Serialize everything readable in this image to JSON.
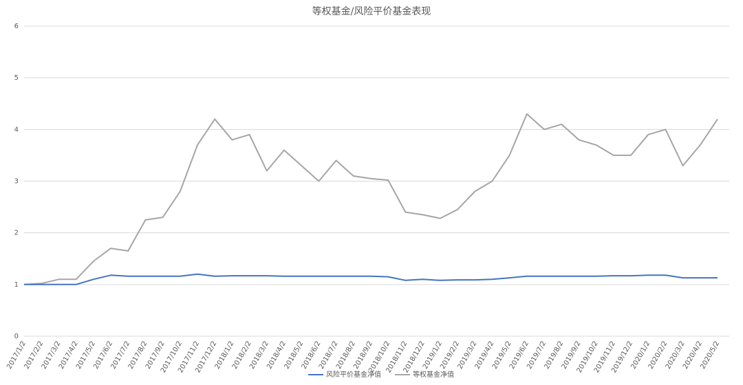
{
  "chart_data": {
    "type": "line",
    "title": "等权基金/风险平价基金表现",
    "categories": [
      "2017/1/2",
      "2017/2/2",
      "2017/3/2",
      "2017/4/2",
      "2017/5/2",
      "2017/6/2",
      "2017/7/2",
      "2017/8/2",
      "2017/9/2",
      "2017/10/2",
      "2017/11/2",
      "2017/12/2",
      "2018/1/2",
      "2018/2/2",
      "2018/3/2",
      "2018/4/2",
      "2018/5/2",
      "2018/6/2",
      "2018/7/2",
      "2018/8/2",
      "2018/9/2",
      "2018/10/2",
      "2018/11/2",
      "2018/12/2",
      "2019/1/2",
      "2019/2/2",
      "2019/3/2",
      "2019/4/2",
      "2019/5/2",
      "2019/6/2",
      "2019/7/2",
      "2019/8/2",
      "2019/9/2",
      "2019/10/2",
      "2019/11/2",
      "2019/12/2",
      "2020/1/2",
      "2020/2/2",
      "2020/3/2",
      "2020/4/2",
      "2020/5/2"
    ],
    "series": [
      {
        "name": "风险平价基金净值",
        "color": "#4472c4",
        "values": [
          1.0,
          1.0,
          1.0,
          1.0,
          1.1,
          1.18,
          1.16,
          1.16,
          1.16,
          1.16,
          1.2,
          1.16,
          1.17,
          1.17,
          1.17,
          1.16,
          1.16,
          1.16,
          1.16,
          1.16,
          1.16,
          1.15,
          1.08,
          1.1,
          1.08,
          1.09,
          1.09,
          1.1,
          1.13,
          1.16,
          1.16,
          1.16,
          1.16,
          1.16,
          1.17,
          1.17,
          1.18,
          1.18,
          1.13,
          1.13,
          1.13
        ]
      },
      {
        "name": "等权基金净值",
        "color": "#a5a5a5",
        "values": [
          1.0,
          1.02,
          1.1,
          1.1,
          1.45,
          1.7,
          1.65,
          2.25,
          2.3,
          2.8,
          3.7,
          4.2,
          3.8,
          3.9,
          3.2,
          3.6,
          3.3,
          3.0,
          3.4,
          3.1,
          3.05,
          3.02,
          2.4,
          2.35,
          2.28,
          2.45,
          2.8,
          3.0,
          3.5,
          4.3,
          4.0,
          4.1,
          3.8,
          3.7,
          3.5,
          3.5,
          3.9,
          4.0,
          3.3,
          3.7,
          4.2
        ]
      }
    ],
    "ylim": [
      0,
      6
    ],
    "yticks": [
      0,
      1,
      2,
      3,
      4,
      5,
      6
    ],
    "grid": true,
    "legend": "bottom"
  }
}
